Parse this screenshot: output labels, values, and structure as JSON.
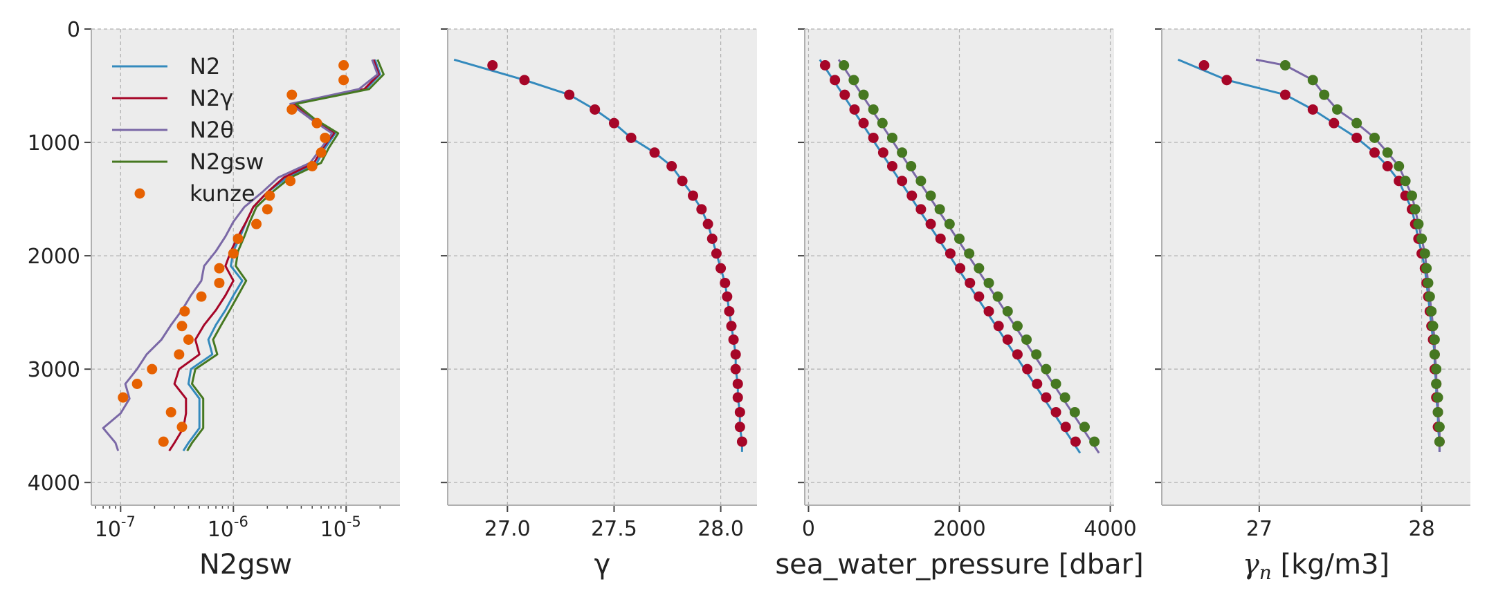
{
  "colors": {
    "N2": "#348ABD",
    "N2γ": "#A60628",
    "N2θ": "#7A68A6",
    "N2gsw": "#467821",
    "kunze": "#E66101",
    "panel_background": "#ECECEC",
    "grid": "#B0B0B0"
  },
  "chart_data": [
    {
      "type": "line",
      "xlabel": "N2gsw",
      "xscale": "log",
      "xlim": [
        5.5e-08,
        3e-05
      ],
      "ylim": [
        4200,
        0
      ],
      "yticks": [
        0,
        1000,
        2000,
        3000,
        4000
      ],
      "xtick_labels": [
        "10",
        "10",
        "10"
      ],
      "xtick_exponents": [
        "-7",
        "-6",
        "-5"
      ],
      "grid": true,
      "legend": {
        "position": "upper-left",
        "entries": [
          "N2",
          "N2γ",
          "N2θ",
          "N2gsw",
          "kunze"
        ]
      },
      "series": [
        {
          "name": "N2",
          "kind": "line",
          "y": [
            270,
            400,
            530,
            660,
            790,
            920,
            1050,
            1180,
            1310,
            1440,
            1570,
            1700,
            1830,
            1960,
            2090,
            2220,
            2350,
            2480,
            2610,
            2740,
            2870,
            3000,
            3130,
            3260,
            3390,
            3520,
            3650,
            3720
          ],
          "x": [
            1.8e-05,
            2e-05,
            1.5e-05,
            3.5e-06,
            5e-06,
            8e-06,
            6.5e-06,
            5.5e-06,
            3e-06,
            2e-06,
            1.5e-06,
            1.3e-06,
            1.15e-06,
            1e-06,
            9.5e-07,
            1.2e-06,
            1e-06,
            8.5e-07,
            7e-07,
            6e-07,
            6.5e-07,
            4.2e-07,
            4e-07,
            5e-07,
            5e-07,
            5e-07,
            4e-07,
            3.6e-07
          ]
        },
        {
          "name": "N2γ",
          "kind": "line",
          "y": [
            270,
            400,
            530,
            660,
            790,
            920,
            1050,
            1180,
            1310,
            1440,
            1570,
            1700,
            1830,
            1960,
            2090,
            2220,
            2350,
            2480,
            2610,
            2740,
            2870,
            3000,
            3130,
            3260,
            3390,
            3520,
            3650,
            3720
          ],
          "x": [
            1.75e-05,
            1.95e-05,
            1.45e-05,
            3.4e-06,
            4.8e-06,
            7.8e-06,
            6.2e-06,
            5.2e-06,
            2.8e-06,
            2e-06,
            1.5e-06,
            1.3e-06,
            1.1e-06,
            9.5e-07,
            8.5e-07,
            1e-06,
            8.5e-07,
            7e-07,
            5.5e-07,
            4.6e-07,
            5e-07,
            3.3e-07,
            3e-07,
            3.8e-07,
            3.8e-07,
            3.6e-07,
            3e-07,
            2.7e-07
          ]
        },
        {
          "name": "N2θ",
          "kind": "line",
          "y": [
            270,
            400,
            530,
            660,
            790,
            920,
            1050,
            1180,
            1310,
            1440,
            1570,
            1700,
            1830,
            1960,
            2090,
            2220,
            2350,
            2480,
            2610,
            2740,
            2870,
            3000,
            3130,
            3260,
            3390,
            3520,
            3650,
            3720
          ],
          "x": [
            1.7e-05,
            1.9e-05,
            1.3e-05,
            3.2e-06,
            4.8e-06,
            7.5e-06,
            6e-06,
            4.8e-06,
            2.5e-06,
            1.8e-06,
            1.25e-06,
            1e-06,
            8.5e-07,
            7e-07,
            5.5e-07,
            5.2e-07,
            4.2e-07,
            3.5e-07,
            2.8e-07,
            2.3e-07,
            1.7e-07,
            1.4e-07,
            1.1e-07,
            1.2e-07,
            1e-07,
            7e-08,
            9e-08,
            9.5e-08
          ]
        },
        {
          "name": "N2gsw",
          "kind": "line",
          "y": [
            270,
            400,
            530,
            660,
            790,
            920,
            1050,
            1180,
            1310,
            1440,
            1570,
            1700,
            1830,
            1960,
            2090,
            2220,
            2350,
            2480,
            2610,
            2740,
            2870,
            3000,
            3130,
            3260,
            3390,
            3520,
            3650,
            3720
          ],
          "x": [
            1.9e-05,
            2.15e-05,
            1.6e-05,
            3.6e-06,
            5.2e-06,
            8.5e-06,
            7e-06,
            6e-06,
            3.2e-06,
            2.2e-06,
            1.6e-06,
            1.4e-06,
            1.25e-06,
            1.1e-06,
            1.05e-06,
            1.3e-06,
            1.1e-06,
            9.3e-07,
            7.8e-07,
            6.6e-07,
            7.2e-07,
            4.6e-07,
            4.3e-07,
            5.4e-07,
            5.4e-07,
            5.4e-07,
            4.3e-07,
            3.9e-07
          ]
        },
        {
          "name": "kunze",
          "kind": "points",
          "y": [
            320,
            450,
            580,
            710,
            830,
            960,
            1090,
            1210,
            1340,
            1470,
            1590,
            1720,
            1850,
            1980,
            2110,
            2240,
            2360,
            2490,
            2620,
            2740,
            2870,
            3000,
            3130,
            3250,
            3380,
            3510,
            3640
          ],
          "x": [
            9.5e-06,
            9.5e-06,
            3.3e-06,
            3.3e-06,
            5.5e-06,
            6.5e-06,
            6e-06,
            5e-06,
            3.2e-06,
            2.1e-06,
            2e-06,
            1.6e-06,
            1.1e-06,
            1e-06,
            7.5e-07,
            7.5e-07,
            5.2e-07,
            3.7e-07,
            3.5e-07,
            4e-07,
            3.3e-07,
            1.9e-07,
            1.4e-07,
            1.05e-07,
            2.8e-07,
            3.5e-07,
            2.4e-07
          ]
        }
      ]
    },
    {
      "type": "line",
      "xlabel": "γ",
      "xlim": [
        26.72,
        28.17
      ],
      "ylim": [
        4200,
        0
      ],
      "xticks": [
        27.0,
        27.5,
        28.0
      ],
      "xtick_labels": [
        "27.0",
        "27.5",
        "28.0"
      ],
      "grid": true,
      "series": [
        {
          "name": "N2",
          "kind": "line",
          "y": [
            270,
            450,
            580,
            710,
            830,
            960,
            1090,
            1210,
            1340,
            1470,
            1590,
            1720,
            1850,
            1980,
            2110,
            2240,
            2360,
            2490,
            2620,
            2740,
            2870,
            3000,
            3130,
            3250,
            3380,
            3510,
            3640,
            3730
          ],
          "x": [
            26.75,
            27.08,
            27.29,
            27.41,
            27.5,
            27.58,
            27.69,
            27.77,
            27.82,
            27.87,
            27.91,
            27.94,
            27.96,
            27.98,
            28.0,
            28.02,
            28.03,
            28.04,
            28.05,
            28.06,
            28.07,
            28.07,
            28.08,
            28.08,
            28.09,
            28.09,
            28.1,
            28.1
          ]
        },
        {
          "name": "N2γ",
          "kind": "points",
          "y": [
            320,
            450,
            580,
            710,
            830,
            960,
            1090,
            1210,
            1340,
            1470,
            1590,
            1720,
            1850,
            1980,
            2110,
            2240,
            2360,
            2490,
            2620,
            2740,
            2870,
            3000,
            3130,
            3250,
            3380,
            3510,
            3640
          ],
          "x": [
            26.93,
            27.08,
            27.29,
            27.41,
            27.5,
            27.58,
            27.69,
            27.77,
            27.82,
            27.87,
            27.91,
            27.94,
            27.96,
            27.98,
            28.0,
            28.02,
            28.03,
            28.04,
            28.05,
            28.06,
            28.07,
            28.07,
            28.08,
            28.08,
            28.09,
            28.09,
            28.1
          ]
        }
      ]
    },
    {
      "type": "line",
      "xlabel": "sea_water_pressure [dbar]",
      "xlim": [
        -50,
        4050
      ],
      "ylim": [
        4200,
        0
      ],
      "xticks": [
        0,
        2000,
        4000
      ],
      "xtick_labels": [
        "0",
        "2000",
        "4000"
      ],
      "grid": true,
      "series": [
        {
          "name": "N2",
          "kind": "line",
          "y": [
            270,
            3740
          ],
          "x": [
            150,
            3600
          ]
        },
        {
          "name": "N2θ",
          "kind": "line",
          "y": [
            270,
            3740
          ],
          "x": [
            400,
            3850
          ]
        },
        {
          "name": "N2γ",
          "kind": "points",
          "y": [
            320,
            450,
            580,
            710,
            830,
            960,
            1090,
            1210,
            1340,
            1470,
            1590,
            1720,
            1850,
            1980,
            2110,
            2240,
            2360,
            2490,
            2620,
            2740,
            2870,
            3000,
            3130,
            3250,
            3380,
            3510,
            3640
          ],
          "x": [
            220,
            350,
            480,
            610,
            730,
            860,
            990,
            1110,
            1240,
            1370,
            1490,
            1620,
            1750,
            1880,
            2010,
            2140,
            2260,
            2390,
            2520,
            2640,
            2770,
            2900,
            3030,
            3150,
            3280,
            3410,
            3540
          ]
        },
        {
          "name": "N2gsw",
          "kind": "points",
          "y": [
            320,
            450,
            580,
            710,
            830,
            960,
            1090,
            1210,
            1340,
            1470,
            1590,
            1720,
            1850,
            1980,
            2110,
            2240,
            2360,
            2490,
            2620,
            2740,
            2870,
            3000,
            3130,
            3250,
            3380,
            3510,
            3640
          ],
          "x": [
            470,
            600,
            730,
            860,
            980,
            1110,
            1240,
            1360,
            1490,
            1620,
            1740,
            1870,
            2000,
            2130,
            2260,
            2390,
            2510,
            2640,
            2770,
            2890,
            3020,
            3150,
            3280,
            3400,
            3530,
            3660,
            3790
          ]
        }
      ]
    },
    {
      "type": "line",
      "xlabel": "[kg/m3]",
      "xlabel_symbol": "γ",
      "xlabel_subscript": "n",
      "xlim": [
        26.4,
        28.3
      ],
      "ylim": [
        4200,
        0
      ],
      "xticks": [
        27,
        28
      ],
      "xtick_labels": [
        "27",
        "28"
      ],
      "grid": true,
      "series": [
        {
          "name": "N2",
          "kind": "line",
          "y": [
            270,
            450,
            580,
            710,
            830,
            960,
            1090,
            1210,
            1340,
            1470,
            1590,
            1720,
            1850,
            1980,
            2110,
            2240,
            2360,
            2490,
            2620,
            2740,
            2870,
            3000,
            3130,
            3250,
            3380,
            3510,
            3640,
            3730
          ],
          "x": [
            26.5,
            26.8,
            27.16,
            27.33,
            27.46,
            27.6,
            27.71,
            27.79,
            27.86,
            27.9,
            27.94,
            27.96,
            27.98,
            28.0,
            28.02,
            28.03,
            28.04,
            28.05,
            28.06,
            28.07,
            28.08,
            28.08,
            28.09,
            28.09,
            28.1,
            28.1,
            28.11,
            28.11
          ]
        },
        {
          "name": "N2θ",
          "kind": "line",
          "y": [
            270,
            320,
            450,
            580,
            710,
            830,
            960,
            1090,
            1210,
            1340,
            1470,
            1590,
            1720,
            1850,
            1980,
            2110,
            2240,
            2360,
            2490,
            2620,
            2740,
            2870,
            3000,
            3130,
            3250,
            3380,
            3510,
            3640,
            3730
          ],
          "x": [
            26.98,
            27.16,
            27.33,
            27.4,
            27.48,
            27.6,
            27.71,
            27.79,
            27.86,
            27.9,
            27.94,
            27.96,
            27.98,
            28.0,
            28.02,
            28.03,
            28.04,
            28.05,
            28.06,
            28.07,
            28.08,
            28.08,
            28.09,
            28.09,
            28.1,
            28.1,
            28.11,
            28.11,
            28.11
          ]
        },
        {
          "name": "N2γ",
          "kind": "points",
          "y": [
            320,
            450,
            580,
            710,
            830,
            960,
            1090,
            1210,
            1340,
            1470,
            1590,
            1720,
            1850,
            1980,
            2110,
            2240,
            2360,
            2490,
            2620,
            2740,
            2870,
            3000,
            3130,
            3250,
            3380,
            3510,
            3640
          ],
          "x": [
            26.66,
            26.8,
            27.16,
            27.33,
            27.46,
            27.6,
            27.71,
            27.79,
            27.86,
            27.9,
            27.94,
            27.96,
            27.98,
            28.0,
            28.02,
            28.03,
            28.04,
            28.05,
            28.06,
            28.07,
            28.08,
            28.08,
            28.09,
            28.09,
            28.1,
            28.1,
            28.11
          ]
        },
        {
          "name": "N2gsw",
          "kind": "points",
          "y": [
            320,
            450,
            580,
            710,
            830,
            960,
            1090,
            1210,
            1340,
            1470,
            1590,
            1720,
            1850,
            1980,
            2110,
            2240,
            2360,
            2490,
            2620,
            2740,
            2870,
            3000,
            3130,
            3250,
            3380,
            3510,
            3640
          ],
          "x": [
            27.16,
            27.33,
            27.4,
            27.48,
            27.6,
            27.71,
            27.79,
            27.86,
            27.9,
            27.94,
            27.96,
            27.98,
            28.0,
            28.02,
            28.03,
            28.04,
            28.05,
            28.06,
            28.07,
            28.08,
            28.08,
            28.09,
            28.09,
            28.1,
            28.1,
            28.11,
            28.11
          ]
        }
      ]
    }
  ]
}
